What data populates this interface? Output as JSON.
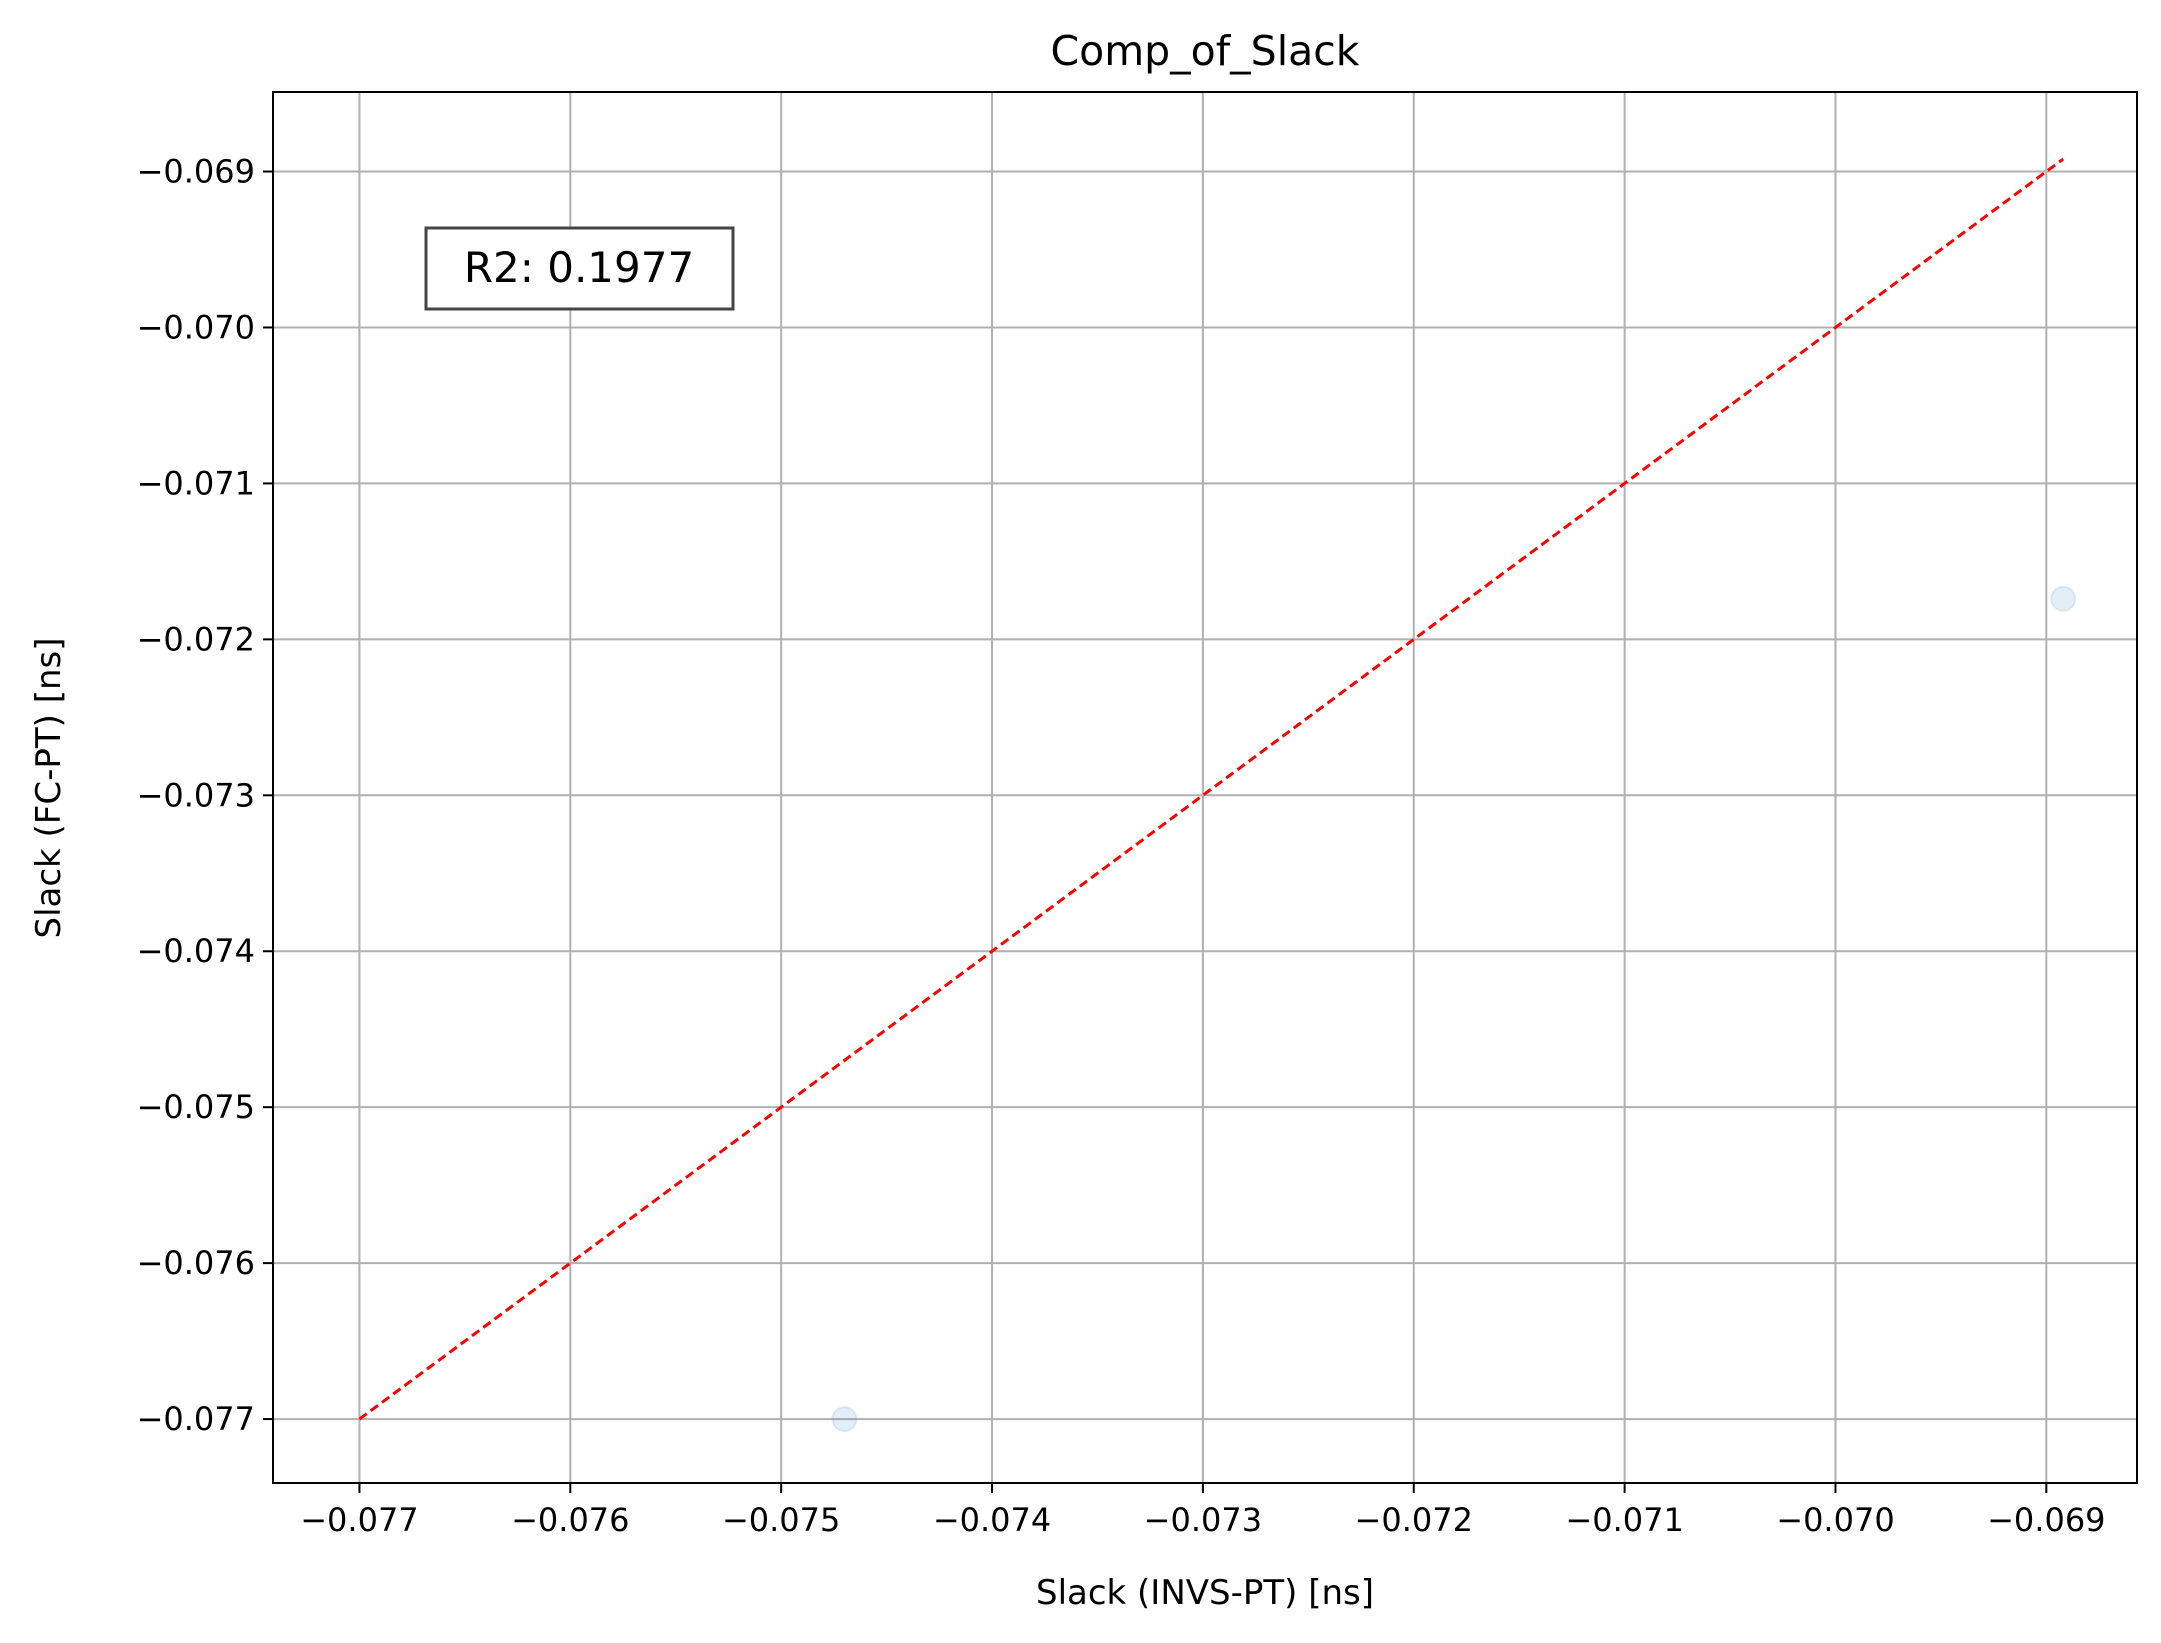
{
  "chart_data": {
    "type": "scatter",
    "title": "Comp_of_Slack",
    "xlabel": "Slack (INVS-PT) [ns]",
    "ylabel": "Slack (FC-PT) [ns]",
    "xlim": [
      -0.07741,
      -0.06857
    ],
    "ylim": [
      -0.07741,
      -0.06849
    ],
    "x_ticks": [
      -0.077,
      -0.076,
      -0.075,
      -0.074,
      -0.073,
      -0.072,
      -0.071,
      -0.07,
      -0.069
    ],
    "x_tick_labels": [
      "−0.077",
      "−0.076",
      "−0.075",
      "−0.074",
      "−0.073",
      "−0.072",
      "−0.071",
      "−0.070",
      "−0.069"
    ],
    "y_ticks": [
      -0.077,
      -0.076,
      -0.075,
      -0.074,
      -0.073,
      -0.072,
      -0.071,
      -0.07,
      -0.069
    ],
    "y_tick_labels": [
      "−0.077",
      "−0.076",
      "−0.075",
      "−0.074",
      "−0.073",
      "−0.072",
      "−0.071",
      "−0.070",
      "−0.069"
    ],
    "grid": true,
    "series": [
      {
        "points": [
          {
            "x": -0.0747,
            "y": -0.077
          },
          {
            "x": -0.06892,
            "y": -0.07174
          }
        ],
        "color": "#1f77b4",
        "alpha": 0.12
      }
    ],
    "reference_line": {
      "x": [
        -0.077,
        -0.06892
      ],
      "y": [
        -0.077,
        -0.06892
      ],
      "color": "#ff0000",
      "style": "dashed"
    },
    "annotation": {
      "text": "R2: 0.1977",
      "placement": "top-left"
    }
  }
}
